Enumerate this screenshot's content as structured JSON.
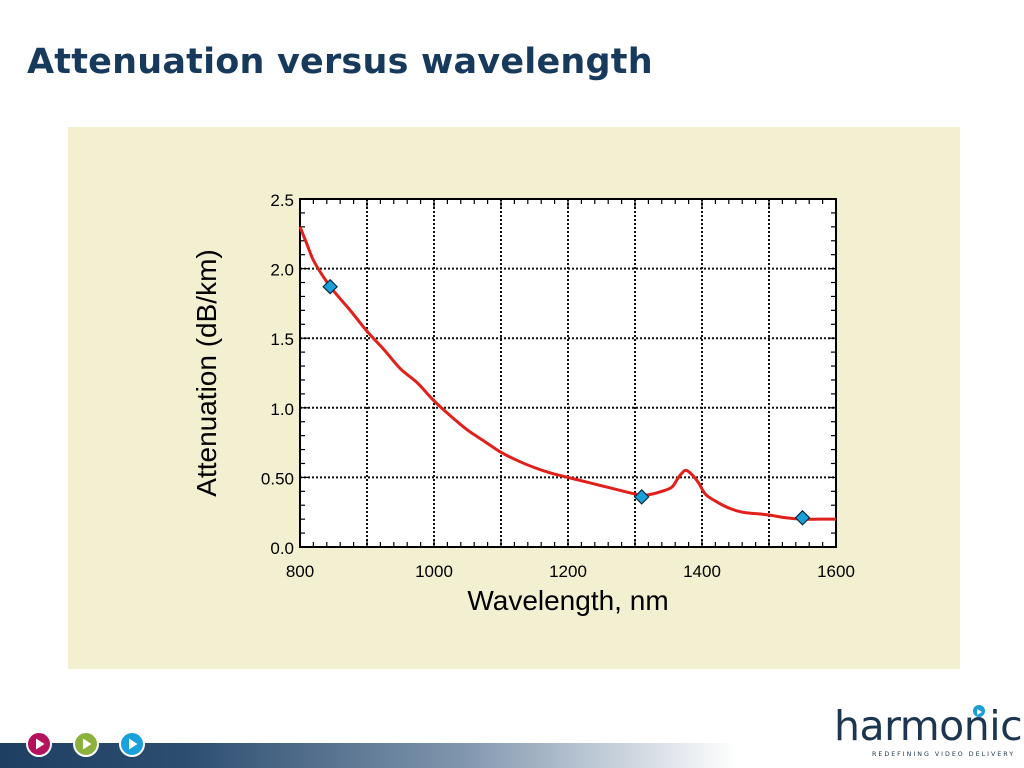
{
  "slide": {
    "title": "Attenuation versus wavelength"
  },
  "footer": {
    "buttons": [
      {
        "icon": "play-icon",
        "color": "#b5125e"
      },
      {
        "icon": "play-icon",
        "color": "#8cb13c"
      },
      {
        "icon": "play-icon",
        "color": "#1aa1dc"
      }
    ],
    "brand": {
      "name": "harmonic",
      "tagline": "REDEFINING VIDEO DELIVERY",
      "accent": "#1a9ed4"
    }
  },
  "chart_data": {
    "type": "line",
    "title": "",
    "xlabel": "Wavelength, nm",
    "ylabel": "Attenuation (dB/km)",
    "xlim": [
      800,
      1600
    ],
    "ylim": [
      0,
      2.5
    ],
    "x_ticks": [
      "800",
      "1000",
      "1200",
      "1400",
      "1600"
    ],
    "y_ticks": [
      "0.0",
      "0.50",
      "1.0",
      "1.5",
      "2.0",
      "2.5"
    ],
    "grid": true,
    "series": [
      {
        "name": "",
        "color": "#e0201b",
        "points": [
          [
            800,
            2.3
          ],
          [
            810,
            2.18
          ],
          [
            820,
            2.06
          ],
          [
            835,
            1.94
          ],
          [
            850,
            1.84
          ],
          [
            875,
            1.7
          ],
          [
            900,
            1.55
          ],
          [
            925,
            1.42
          ],
          [
            950,
            1.28
          ],
          [
            975,
            1.18
          ],
          [
            1000,
            1.05
          ],
          [
            1025,
            0.94
          ],
          [
            1050,
            0.84
          ],
          [
            1075,
            0.76
          ],
          [
            1100,
            0.68
          ],
          [
            1125,
            0.62
          ],
          [
            1150,
            0.57
          ],
          [
            1175,
            0.53
          ],
          [
            1200,
            0.5
          ],
          [
            1225,
            0.47
          ],
          [
            1250,
            0.44
          ],
          [
            1275,
            0.41
          ],
          [
            1300,
            0.38
          ],
          [
            1310,
            0.37
          ],
          [
            1325,
            0.38
          ],
          [
            1340,
            0.4
          ],
          [
            1355,
            0.43
          ],
          [
            1365,
            0.5
          ],
          [
            1375,
            0.55
          ],
          [
            1385,
            0.52
          ],
          [
            1395,
            0.46
          ],
          [
            1405,
            0.38
          ],
          [
            1420,
            0.33
          ],
          [
            1440,
            0.28
          ],
          [
            1460,
            0.25
          ],
          [
            1480,
            0.24
          ],
          [
            1500,
            0.23
          ],
          [
            1525,
            0.21
          ],
          [
            1550,
            0.2
          ],
          [
            1575,
            0.2
          ],
          [
            1600,
            0.2
          ]
        ]
      }
    ],
    "markers": {
      "shape": "diamond",
      "color": "#1aa0d8",
      "points": [
        [
          845,
          1.87
        ],
        [
          1310,
          0.36
        ],
        [
          1550,
          0.21
        ]
      ]
    }
  }
}
